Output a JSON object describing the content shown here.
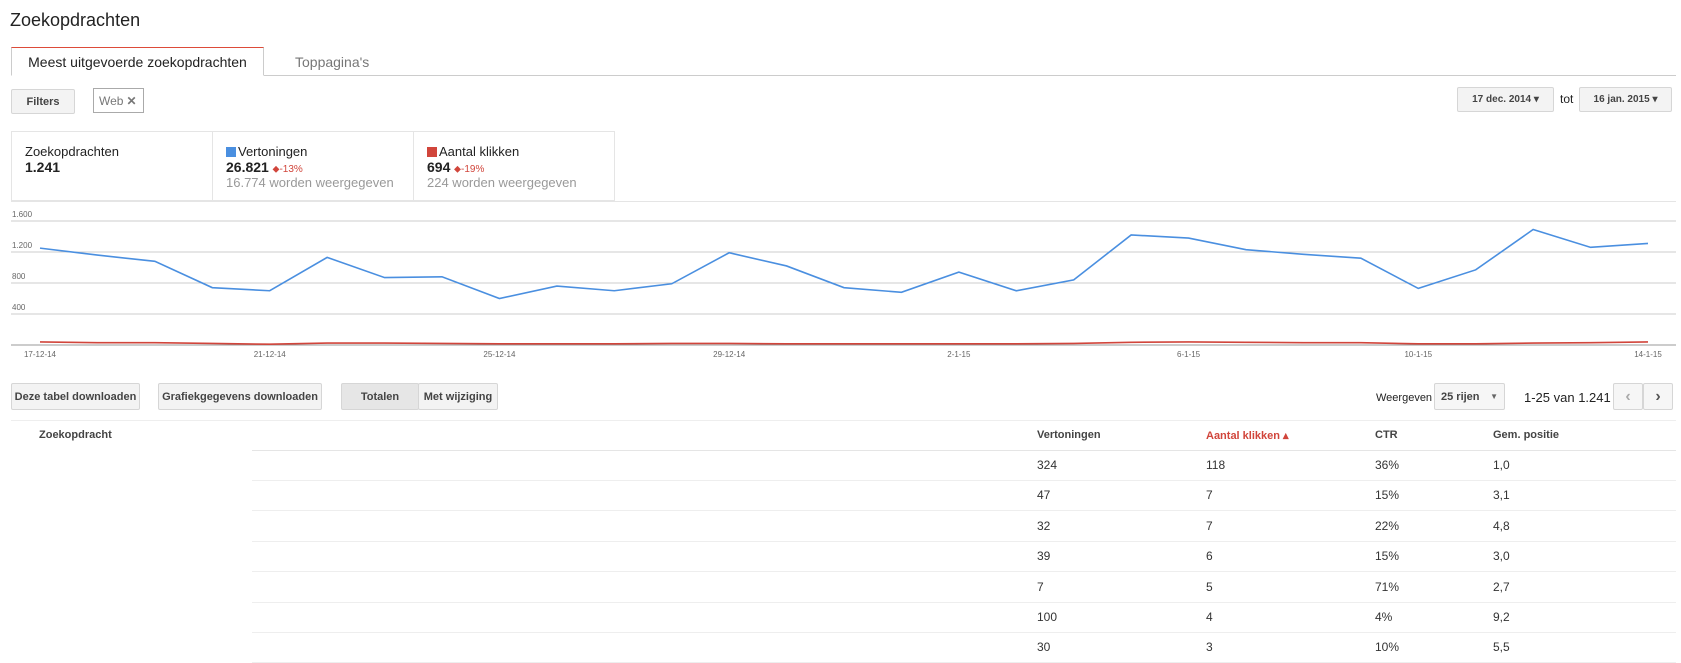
{
  "header": {
    "title": "Zoekopdrachten"
  },
  "tabs": [
    "Meest uitgevoerde zoekopdrachten",
    "Toppagina's"
  ],
  "filters": {
    "button": "Filters",
    "chip": "Web"
  },
  "date_range": {
    "start": "17 dec. 2014",
    "separator": "tot",
    "end": "16 jan. 2015"
  },
  "summary": [
    {
      "label": "Zoekopdrachten",
      "value": "1.241"
    },
    {
      "value": "26.821",
      "change": "-13%",
      "note": "16.774 worden weergegeven"
    },
    {
      "value": "694",
      "change": "-19%",
      "note": "224 worden weergegeven"
    }
  ],
  "chart_data": {
    "type": "line",
    "categories": [
      "17-12-14",
      null,
      null,
      null,
      "21-12-14",
      null,
      null,
      null,
      "25-12-14",
      null,
      null,
      null,
      "29-12-14",
      null,
      null,
      null,
      "2-1-15",
      null,
      null,
      null,
      "6-1-15",
      null,
      null,
      null,
      "10-1-15",
      null,
      null,
      null,
      "14-1-15"
    ],
    "series": [
      {
        "name": "Vertoningen",
        "color": "#4a8fe0",
        "values": [
          1250,
          1160,
          1080,
          740,
          700,
          1130,
          870,
          880,
          600,
          760,
          700,
          790,
          1190,
          1020,
          740,
          680,
          940,
          700,
          840,
          1420,
          1380,
          1230,
          1170,
          1120,
          730,
          970,
          1490,
          1260,
          1310
        ]
      },
      {
        "name": "Aantal klikken",
        "color": "#d1453b",
        "values": [
          40,
          30,
          30,
          20,
          10,
          25,
          25,
          20,
          15,
          15,
          15,
          20,
          20,
          15,
          15,
          15,
          15,
          15,
          20,
          35,
          40,
          35,
          30,
          30,
          15,
          15,
          25,
          30,
          40
        ]
      }
    ],
    "ylim": [
      0,
      1600
    ],
    "yticks": [
      {
        "value": 400,
        "label": "400"
      },
      {
        "value": 800,
        "label": "800"
      },
      {
        "value": 1200,
        "label": "1.200"
      },
      {
        "value": 1600,
        "label": "1.600"
      }
    ],
    "grid": true
  },
  "toolbar": {
    "download_table": "Deze tabel downloaden",
    "download_chart": "Grafiekgegevens downloaden",
    "totals": "Totalen",
    "changes": "Met wijziging",
    "show": "Weergeven",
    "rows": "25 rijen",
    "range": "1-25 van 1.241"
  },
  "table": {
    "columns": [
      "Zoekopdracht",
      "Vertoningen",
      "Aantal klikken",
      "CTR",
      "Gem. positie"
    ],
    "rows": [
      [
        "324",
        "118",
        "36%",
        "1,0"
      ],
      [
        "47",
        "7",
        "15%",
        "3,1"
      ],
      [
        "32",
        "7",
        "22%",
        "4,8"
      ],
      [
        "39",
        "6",
        "15%",
        "3,0"
      ],
      [
        "7",
        "5",
        "71%",
        "2,7"
      ],
      [
        "100",
        "4",
        "4%",
        "9,2"
      ],
      [
        "30",
        "3",
        "10%",
        "5,5"
      ]
    ]
  }
}
